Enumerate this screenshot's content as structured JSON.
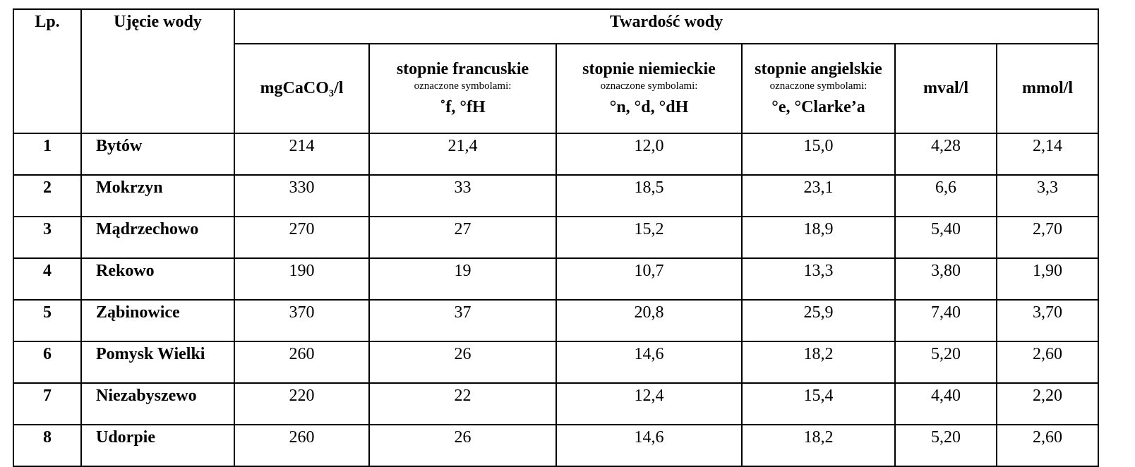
{
  "table": {
    "header": {
      "lp": "Lp.",
      "intake": "Ujęcie wody",
      "group": "Twardość wody"
    },
    "columns": [
      {
        "title": "mgCaCO₃/l"
      },
      {
        "title": "stopnie francuskie",
        "note": "oznaczone symbolami:",
        "symbols": "˚f,  °fH"
      },
      {
        "title": "stopnie niemieckie",
        "note": "oznaczone symbolami:",
        "symbols": "°n,  °d,  °dH"
      },
      {
        "title": "stopnie angielskie",
        "note": "oznaczone symbolami:",
        "symbols": "°e,  °Clarke’a"
      },
      {
        "title": "mval/l"
      },
      {
        "title": "mmol/l"
      }
    ],
    "rows": [
      [
        "1",
        "Bytów",
        "214",
        "21,4",
        "12,0",
        "15,0",
        "4,28",
        "2,14"
      ],
      [
        "2",
        "Mokrzyn",
        "330",
        "33",
        "18,5",
        "23,1",
        "6,6",
        "3,3"
      ],
      [
        "3",
        "Mądrzechowo",
        "270",
        "27",
        "15,2",
        "18,9",
        "5,40",
        "2,70"
      ],
      [
        "4",
        "Rekowo",
        "190",
        "19",
        "10,7",
        "13,3",
        "3,80",
        "1,90"
      ],
      [
        "5",
        "Ząbinowice",
        "370",
        "37",
        "20,8",
        "25,9",
        "7,40",
        "3,70"
      ],
      [
        "6",
        "Pomysk Wielki",
        "260",
        "26",
        "14,6",
        "18,2",
        "5,20",
        "2,60"
      ],
      [
        "7",
        "Niezabyszewo",
        "220",
        "22",
        "12,4",
        "15,4",
        "4,40",
        "2,20"
      ],
      [
        "8",
        "Udorpie",
        "260",
        "26",
        "14,6",
        "18,2",
        "5,20",
        "2,60"
      ]
    ]
  }
}
